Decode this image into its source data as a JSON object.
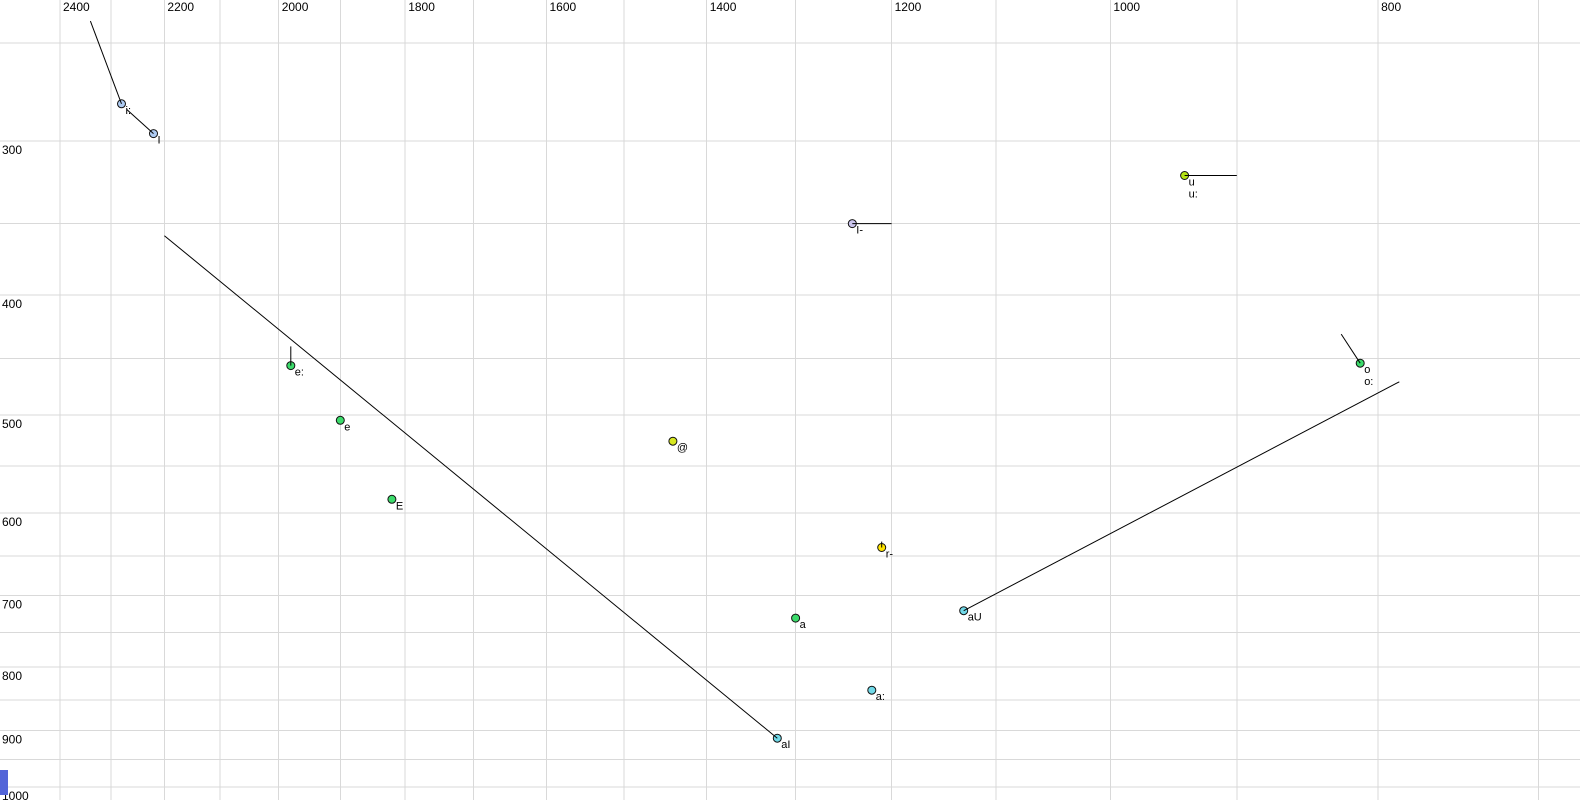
{
  "figure": {
    "background_color": "#ffffff",
    "grid_color": "#d9d9d9",
    "trace_color": "#000000",
    "point_outline_color": "#111111",
    "text_color": "#000000",
    "selection_fragment_color": "#5365d8"
  },
  "chart_data": {
    "type": "scatter",
    "title": "",
    "xlabel": "",
    "ylabel": "",
    "x_axis": {
      "orientation": "top",
      "scale": "log",
      "direction": "values-decrease-to-the-right",
      "tick_labels": [
        "2400",
        "2200",
        "2000",
        "1800",
        "1600",
        "1400",
        "1200",
        "1000",
        "800"
      ],
      "tick_values": [
        2400,
        2200,
        2000,
        1800,
        1600,
        1400,
        1200,
        1000,
        800
      ],
      "gridline_values": [
        2400,
        2300,
        2200,
        2100,
        2000,
        1900,
        1800,
        1700,
        1600,
        1500,
        1400,
        1300,
        1200,
        1100,
        1000,
        900,
        800,
        700
      ],
      "grid_range": [
        2400,
        700
      ]
    },
    "y_axis": {
      "orientation": "left",
      "scale": "log",
      "direction": "values-increase-downward",
      "tick_labels": [
        "300",
        "400",
        "500",
        "600",
        "700",
        "800",
        "900",
        "1000"
      ],
      "tick_values": [
        300,
        400,
        500,
        600,
        700,
        800,
        900,
        1000
      ],
      "gridline_values": [
        250,
        300,
        350,
        400,
        450,
        500,
        550,
        600,
        650,
        700,
        750,
        800,
        850,
        900,
        950,
        1000
      ],
      "grid_range": [
        250,
        1000
      ]
    },
    "points": [
      {
        "id": "i-long",
        "labels": [
          "i:"
        ],
        "f2": 2280,
        "f1": 280,
        "fill": "#aecbf2"
      },
      {
        "id": "i-short",
        "labels": [
          "I"
        ],
        "f2": 2220,
        "f1": 296,
        "fill": "#aecbf2"
      },
      {
        "id": "u-u-long",
        "labels": [
          "u",
          "u:"
        ],
        "f2": 940,
        "f1": 320,
        "fill": "#b5e414"
      },
      {
        "id": "i-bar",
        "labels": [
          "I-"
        ],
        "f2": 1240,
        "f1": 350,
        "fill": "#ccc6ee"
      },
      {
        "id": "e-long",
        "labels": [
          "e:"
        ],
        "f2": 1980,
        "f1": 456,
        "fill": "#3cdb6b"
      },
      {
        "id": "e",
        "labels": [
          "e"
        ],
        "f2": 1900,
        "f1": 505,
        "fill": "#3cdb6b"
      },
      {
        "id": "e-open",
        "labels": [
          "E"
        ],
        "f2": 1820,
        "f1": 585,
        "fill": "#3cdb6b"
      },
      {
        "id": "schwa",
        "labels": [
          "@"
        ],
        "f2": 1440,
        "f1": 525,
        "fill": "#d7e821"
      },
      {
        "id": "r-bar",
        "labels": [
          "r-"
        ],
        "f2": 1210,
        "f1": 640,
        "fill": "#ffe400"
      },
      {
        "id": "a",
        "labels": [
          "a"
        ],
        "f2": 1300,
        "f1": 730,
        "fill": "#3cdb6b"
      },
      {
        "id": "au",
        "labels": [
          "aU"
        ],
        "f2": 1130,
        "f1": 720,
        "fill": "#70d9e8"
      },
      {
        "id": "a-long",
        "labels": [
          "a:"
        ],
        "f2": 1220,
        "f1": 835,
        "fill": "#70d9e8"
      },
      {
        "id": "ai",
        "labels": [
          "aI"
        ],
        "f2": 1320,
        "f1": 913,
        "fill": "#70d9e8"
      },
      {
        "id": "o-o-long",
        "labels": [
          "o",
          "o:"
        ],
        "f2": 812,
        "f1": 454,
        "fill": "#3cdb6b"
      }
    ],
    "trajectories": [
      {
        "point": "i-long",
        "from": [
          2340,
          240
        ],
        "to": [
          2280,
          280
        ]
      },
      {
        "point": "i-short",
        "from": [
          2270,
          283
        ],
        "to": [
          2220,
          296
        ]
      },
      {
        "point": "u-u-long",
        "from": [
          940,
          320
        ],
        "to": [
          900,
          320
        ]
      },
      {
        "point": "i-bar",
        "from": [
          1240,
          350
        ],
        "to": [
          1200,
          350
        ]
      },
      {
        "point": "e-long",
        "from": [
          1980,
          440
        ],
        "to": [
          1980,
          456
        ]
      },
      {
        "point": "r-bar",
        "from": [
          1210,
          633
        ],
        "to": [
          1210,
          640
        ]
      },
      {
        "point": "ai",
        "from": [
          1320,
          913
        ],
        "to": [
          2200,
          358
        ]
      },
      {
        "point": "au",
        "from": [
          1130,
          720
        ],
        "to": [
          786,
          470
        ]
      },
      {
        "point": "o-o-long",
        "from": [
          825,
          430
        ],
        "to": [
          812,
          454
        ]
      }
    ]
  }
}
